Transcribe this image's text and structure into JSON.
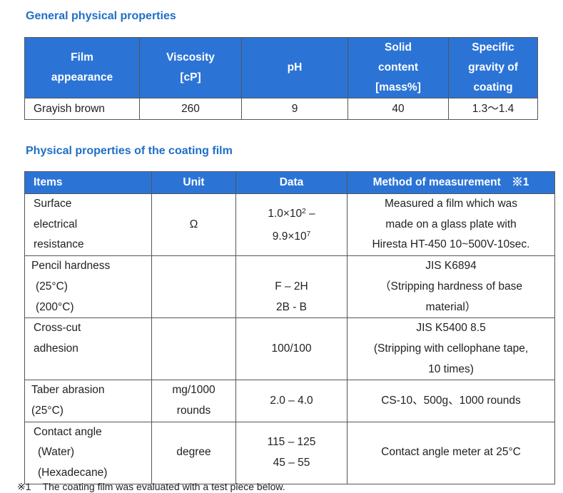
{
  "general": {
    "heading": "General physical properties",
    "headers": {
      "film_appearance": [
        "Film",
        "appearance"
      ],
      "viscosity": [
        "Viscosity",
        "[cP]"
      ],
      "ph": [
        "pH"
      ],
      "solid": [
        "Solid",
        "content",
        "[mass%]"
      ],
      "gravity": [
        "Specific",
        "gravity of",
        "coating"
      ]
    },
    "row": {
      "film_appearance": "Grayish brown",
      "viscosity": "260",
      "ph": "9",
      "solid": "40",
      "gravity": "1.3～1.4"
    }
  },
  "film": {
    "heading": "Physical properties of the coating film",
    "headers": {
      "items": "Items",
      "unit": "Unit",
      "data": "Data",
      "method": "Method of measurement　※1"
    },
    "rows": [
      {
        "items": [
          "Surface",
          "electrical",
          "resistance"
        ],
        "unit": "Ω",
        "data_a": "1.0×10",
        "data_a_exp": "2",
        "data_a_tail": " –",
        "data_b": "9.9×10",
        "data_b_exp": "7",
        "method": [
          "Measured a film which was",
          "made on a glass plate with",
          "Hiresta HT-450 10~500V-10sec."
        ]
      },
      {
        "items": [
          "Pencil hardness",
          "(25°C)",
          "(200°C)"
        ],
        "unit": "",
        "data": [
          "",
          "F – 2H",
          "2B - B"
        ],
        "method": [
          "JIS K6894",
          "（Stripping hardness of base",
          "material）"
        ]
      },
      {
        "items": [
          "Cross-cut",
          "adhesion"
        ],
        "unit": "",
        "data": "100/100",
        "method": [
          "JIS K5400 8.5",
          "(Stripping with cellophane tape,",
          "10 times)"
        ]
      },
      {
        "items": [
          "Taber abrasion",
          "(25°C)"
        ],
        "unit": [
          "mg/1000",
          "rounds"
        ],
        "data": "2.0 – 4.0",
        "method": "CS-10、500g、1000 rounds"
      },
      {
        "items": [
          "Contact angle",
          "(Water)",
          "(Hexadecane)"
        ],
        "unit": "degree",
        "data": [
          "115 – 125",
          "45 – 55"
        ],
        "method": "Contact angle meter at 25°C"
      }
    ]
  },
  "footnote": {
    "symbol": "※1",
    "text": "The coating film was evaluated with a test piece below."
  }
}
